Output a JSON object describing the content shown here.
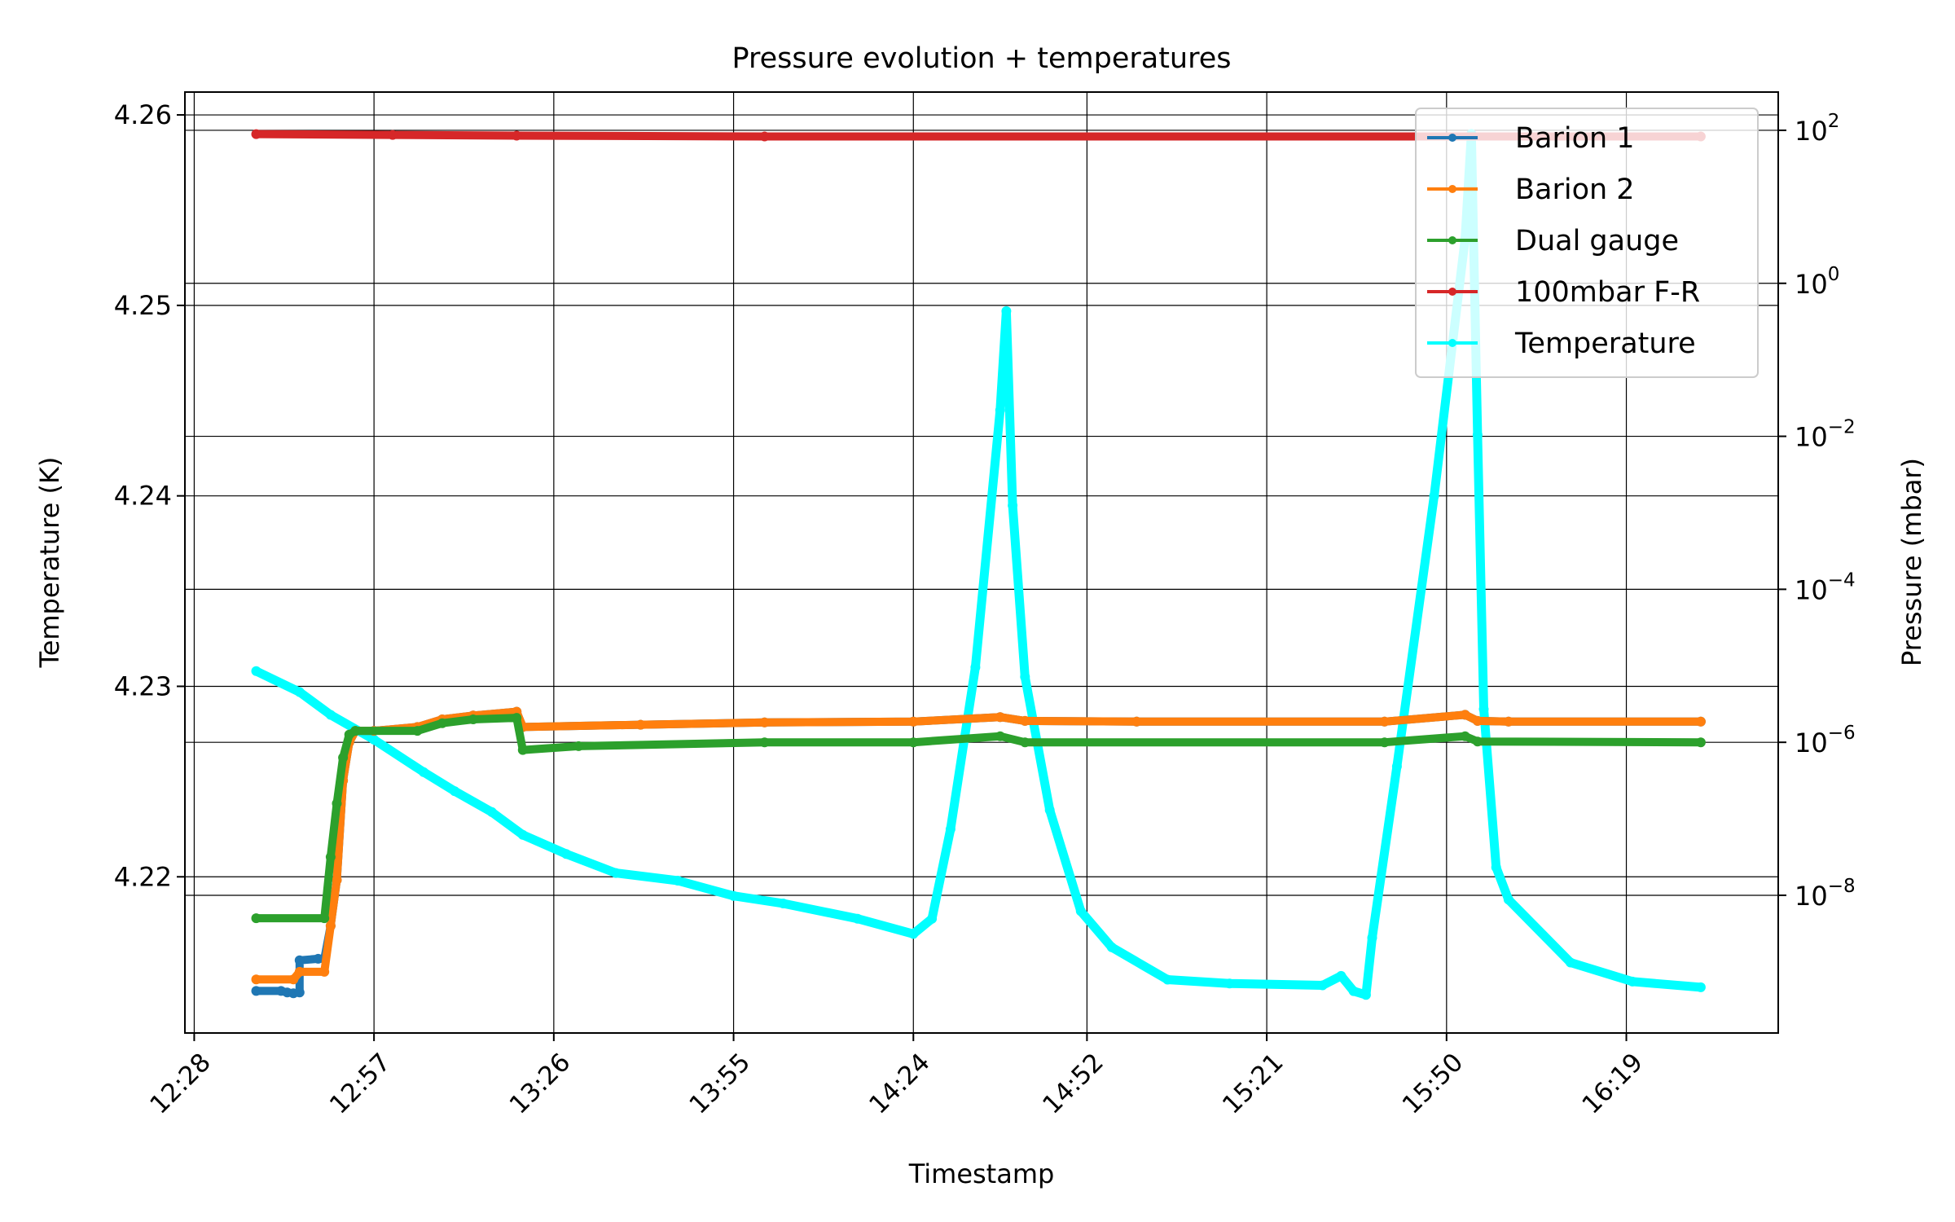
{
  "chart_data": {
    "type": "line",
    "title": "Pressure evolution + temperatures",
    "xlabel": "Timestamp",
    "ylabel_left": "Temperature (K)",
    "ylabel_right": "Pressure (mbar)",
    "x_ticks": [
      "12:28",
      "12:57",
      "13:26",
      "13:55",
      "14:24",
      "14:52",
      "15:21",
      "15:50",
      "16:19"
    ],
    "x_tick_minutes": [
      748,
      777,
      806,
      835,
      864,
      892,
      921,
      950,
      979
    ],
    "xlim_minutes": [
      746.5,
      1003.5
    ],
    "y_left": {
      "ticks": [
        4.22,
        4.23,
        4.24,
        4.25,
        4.26
      ],
      "tick_labels": [
        "4.22",
        "4.23",
        "4.24",
        "4.25",
        "4.26"
      ],
      "lim": [
        4.2118,
        4.2612
      ]
    },
    "y_right": {
      "scale": "log",
      "tick_exponents": [
        -8,
        -6,
        -4,
        -2,
        0,
        2
      ],
      "tick_labels": [
        {
          "base": "10",
          "exp": "−8"
        },
        {
          "base": "10",
          "exp": "−6"
        },
        {
          "base": "10",
          "exp": "−4"
        },
        {
          "base": "10",
          "exp": "−2"
        },
        {
          "base": "10",
          "exp": "0"
        },
        {
          "base": "10",
          "exp": "2"
        }
      ],
      "lim_exponents": [
        -9.8,
        2.5
      ]
    },
    "grid": true,
    "legend_position": "top-right",
    "series": [
      {
        "name": "Barion 1",
        "color": "#1f77b4",
        "axis": "right",
        "points": [
          [
            "12:38",
            -9.25
          ],
          [
            "12:42",
            -9.25
          ],
          [
            "12:43",
            -9.27
          ],
          [
            "12:44",
            -9.28
          ],
          [
            "12:45",
            -9.27
          ],
          [
            "12:45",
            -8.85
          ],
          [
            "12:48",
            -8.83
          ],
          [
            "12:49",
            -8.83
          ],
          [
            "12:50",
            -8.4
          ],
          [
            "12:51",
            -7.8
          ],
          [
            "12:52",
            -6.5
          ],
          [
            "12:53",
            -6.0
          ],
          [
            "12:54",
            -5.85
          ],
          [
            "12:57",
            -5.85
          ],
          [
            "13:04",
            -5.8
          ],
          [
            "13:08",
            -5.7
          ],
          [
            "13:13",
            -5.65
          ],
          [
            "13:20",
            -5.6
          ],
          [
            "13:21",
            -5.8
          ],
          [
            "13:40",
            -5.77
          ],
          [
            "14:00",
            -5.74
          ],
          [
            "14:24",
            -5.73
          ],
          [
            "14:38",
            -5.67
          ],
          [
            "14:42",
            -5.72
          ],
          [
            "15:00",
            -5.73
          ],
          [
            "15:40",
            -5.73
          ],
          [
            "15:53",
            -5.64
          ],
          [
            "15:55",
            -5.72
          ],
          [
            "16:00",
            -5.73
          ],
          [
            "16:31",
            -5.73
          ]
        ]
      },
      {
        "name": "Barion 2",
        "color": "#ff7f0e",
        "axis": "right",
        "points": [
          [
            "12:38",
            -9.1
          ],
          [
            "12:44",
            -9.1
          ],
          [
            "12:45",
            -9.0
          ],
          [
            "12:49",
            -9.0
          ],
          [
            "12:50",
            -8.4
          ],
          [
            "12:51",
            -7.8
          ],
          [
            "12:52",
            -6.5
          ],
          [
            "12:53",
            -6.0
          ],
          [
            "12:54",
            -5.85
          ],
          [
            "12:57",
            -5.85
          ],
          [
            "13:04",
            -5.8
          ],
          [
            "13:08",
            -5.7
          ],
          [
            "13:13",
            -5.65
          ],
          [
            "13:20",
            -5.6
          ],
          [
            "13:21",
            -5.8
          ],
          [
            "13:40",
            -5.77
          ],
          [
            "14:00",
            -5.74
          ],
          [
            "14:24",
            -5.73
          ],
          [
            "14:38",
            -5.67
          ],
          [
            "14:42",
            -5.72
          ],
          [
            "15:00",
            -5.73
          ],
          [
            "15:40",
            -5.73
          ],
          [
            "15:53",
            -5.64
          ],
          [
            "15:55",
            -5.72
          ],
          [
            "16:00",
            -5.73
          ],
          [
            "16:31",
            -5.73
          ]
        ]
      },
      {
        "name": "Dual gauge",
        "color": "#2ca02c",
        "axis": "right",
        "points": [
          [
            "12:38",
            -8.3
          ],
          [
            "12:49",
            -8.3
          ],
          [
            "12:50",
            -7.5
          ],
          [
            "12:51",
            -6.8
          ],
          [
            "12:52",
            -6.2
          ],
          [
            "12:53",
            -5.9
          ],
          [
            "12:54",
            -5.85
          ],
          [
            "13:04",
            -5.85
          ],
          [
            "13:08",
            -5.75
          ],
          [
            "13:13",
            -5.7
          ],
          [
            "13:20",
            -5.68
          ],
          [
            "13:21",
            -6.1
          ],
          [
            "13:30",
            -6.05
          ],
          [
            "14:00",
            -6.0
          ],
          [
            "14:24",
            -6.0
          ],
          [
            "14:38",
            -5.92
          ],
          [
            "14:42",
            -6.0
          ],
          [
            "15:40",
            -6.0
          ],
          [
            "15:53",
            -5.92
          ],
          [
            "15:55",
            -5.99
          ],
          [
            "16:31",
            -6.0
          ]
        ]
      },
      {
        "name": "100mbar F-R",
        "color": "#d62728",
        "axis": "right",
        "points": [
          [
            "12:38",
            1.95
          ],
          [
            "13:00",
            1.94
          ],
          [
            "13:20",
            1.93
          ],
          [
            "14:00",
            1.92
          ],
          [
            "16:31",
            1.92
          ]
        ]
      },
      {
        "name": "Temperature",
        "color": "#00ffff",
        "axis": "left",
        "points": [
          [
            "12:38",
            4.2308
          ],
          [
            "12:45",
            4.2297
          ],
          [
            "12:50",
            4.2285
          ],
          [
            "12:57",
            4.2272
          ],
          [
            "13:05",
            4.2255
          ],
          [
            "13:10",
            4.2245
          ],
          [
            "13:16",
            4.2234
          ],
          [
            "13:21",
            4.2222
          ],
          [
            "13:28",
            4.2212
          ],
          [
            "13:36",
            4.2202
          ],
          [
            "13:46",
            4.2198
          ],
          [
            "13:55",
            4.219
          ],
          [
            "14:03",
            4.2186
          ],
          [
            "14:15",
            4.2178
          ],
          [
            "14:24",
            4.217
          ],
          [
            "14:27",
            4.2178
          ],
          [
            "14:30",
            4.2225
          ],
          [
            "14:34",
            4.231
          ],
          [
            "14:38",
            4.2445
          ],
          [
            "14:39",
            4.2497
          ],
          [
            "14:40",
            4.2395
          ],
          [
            "14:42",
            4.2305
          ],
          [
            "14:46",
            4.2235
          ],
          [
            "14:51",
            4.2182
          ],
          [
            "14:56",
            4.2163
          ],
          [
            "15:05",
            4.2146
          ],
          [
            "15:15",
            4.2144
          ],
          [
            "15:30",
            4.2143
          ],
          [
            "15:33",
            4.2148
          ],
          [
            "15:35",
            4.214
          ],
          [
            "15:37",
            4.2138
          ],
          [
            "15:38",
            4.2168
          ],
          [
            "15:42",
            4.2258
          ],
          [
            "15:48",
            4.24
          ],
          [
            "15:53",
            4.2535
          ],
          [
            "15:54",
            4.259
          ],
          [
            "15:55",
            4.2432
          ],
          [
            "15:56",
            4.2288
          ],
          [
            "15:58",
            4.2205
          ],
          [
            "16:00",
            4.2188
          ],
          [
            "16:10",
            4.2155
          ],
          [
            "16:20",
            4.2145
          ],
          [
            "16:31",
            4.2142
          ]
        ]
      }
    ]
  }
}
